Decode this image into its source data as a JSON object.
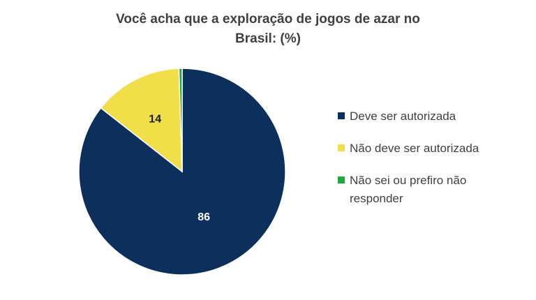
{
  "chart_data": {
    "type": "pie",
    "title": "Você acha que a exploração de jogos de azar no Brasil: (%)",
    "categories": [
      "Deve ser autorizada",
      "Não deve ser autorizada",
      "Não sei ou prefiro não responder"
    ],
    "values": [
      86,
      14,
      0.5
    ],
    "data_labels": [
      "86",
      "14",
      ""
    ],
    "colors": [
      "#0D2F5B",
      "#F0DF48",
      "#1FA83C"
    ],
    "label_colors": [
      "#ffffff",
      "#1a1a1a",
      "#1a1a1a"
    ],
    "legend_position": "right"
  }
}
